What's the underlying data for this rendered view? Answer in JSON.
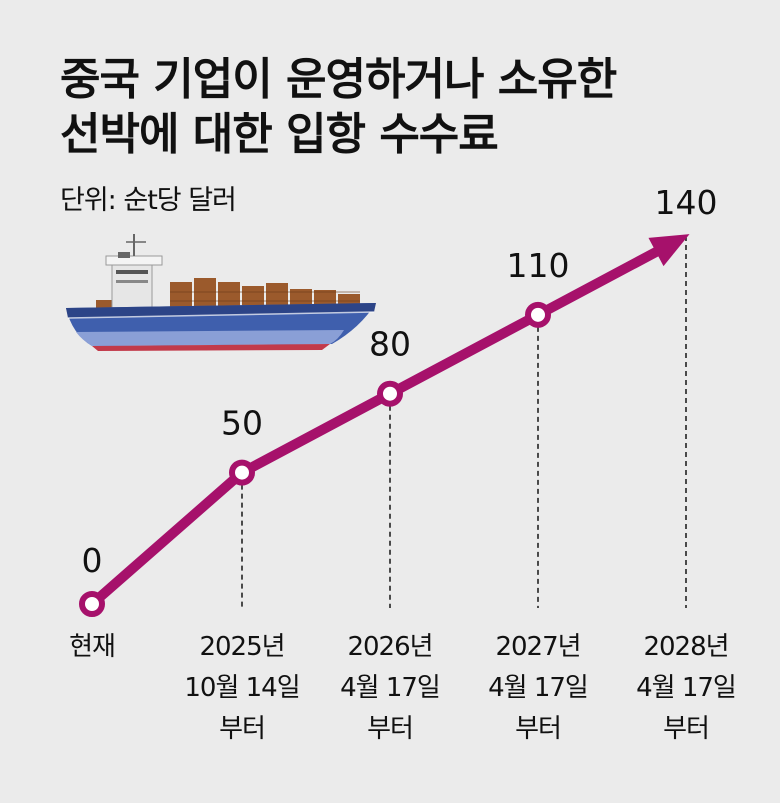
{
  "title": {
    "line1": "중국 기업이 운영하거나 소유한",
    "line2": "선박에 대한 입항 수수료"
  },
  "unit_label": "단위: 순t당 달러",
  "chart_data": {
    "type": "line",
    "x": [
      [
        "현재"
      ],
      [
        "2025년",
        "10월 14일",
        "부터"
      ],
      [
        "2026년",
        "4월 17일",
        "부터"
      ],
      [
        "2027년",
        "4월 17일",
        "부터"
      ],
      [
        "2028년",
        "4월 17일",
        "부터"
      ]
    ],
    "values": [
      0,
      50,
      80,
      110,
      140
    ],
    "data_labels": [
      "0",
      "50",
      "80",
      "110",
      "140"
    ],
    "ylim": [
      0,
      140
    ],
    "line_color": "#a6116b",
    "last_point_arrow": true,
    "grid": false,
    "illustration": "container-ship"
  }
}
